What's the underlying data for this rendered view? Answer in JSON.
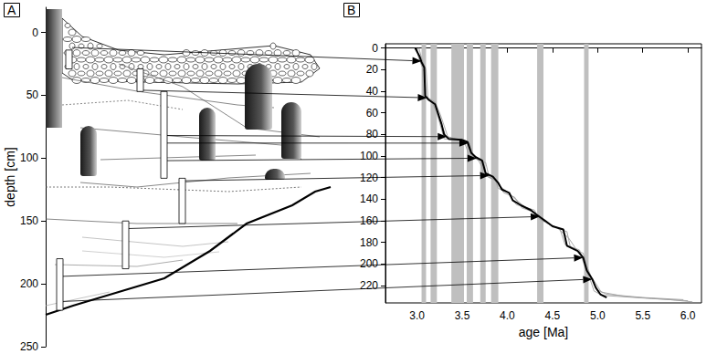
{
  "chart_data": [
    {
      "type": "section",
      "title": "A",
      "ylabel": "depth [cm]",
      "ylim": [
        -20,
        250
      ],
      "yticks": [
        0,
        50,
        100,
        150,
        200,
        250
      ],
      "samples": [
        [
          14,
          29
        ],
        [
          29,
          47
        ],
        [
          47,
          116
        ],
        [
          116,
          152
        ],
        [
          150,
          188
        ],
        [
          180,
          221
        ]
      ]
    },
    {
      "type": "line",
      "title": "B",
      "xlabel": "age [Ma]",
      "xlim": [
        2.65,
        6.15
      ],
      "xticks": [
        {
          "value": 3,
          "label": "3.0"
        },
        3.5,
        {
          "value": 4,
          "label": "4.0"
        },
        4.5,
        {
          "value": 5,
          "label": "5.0"
        },
        5.5,
        {
          "value": 6,
          "label": "6.0"
        }
      ],
      "ylim": [
        -4,
        236
      ],
      "yticks": [
        0,
        20,
        40,
        60,
        80,
        100,
        120,
        140,
        160,
        180,
        200,
        220
      ],
      "intervals": {
        "color": "#bfbfbf",
        "values": [
          [
            3.05,
            3.1
          ],
          [
            3.15,
            3.22
          ],
          [
            3.38,
            3.52
          ],
          [
            3.55,
            3.62
          ],
          [
            3.7,
            3.76
          ],
          [
            3.82,
            3.9
          ],
          [
            4.33,
            4.4
          ],
          [
            4.85,
            4.9
          ]
        ]
      },
      "series": [
        {
          "color": "#a0a0a0",
          "line_style": "solid",
          "values": [
            [
              3.0,
              0
            ],
            [
              3.02,
              10
            ],
            [
              3.06,
              16
            ],
            [
              3.07,
              44
            ],
            [
              3.16,
              49
            ],
            [
              3.22,
              60
            ],
            [
              3.3,
              84
            ],
            [
              3.52,
              86
            ],
            [
              3.58,
              100
            ],
            [
              3.7,
              103
            ],
            [
              3.74,
              118
            ],
            [
              3.86,
              121
            ],
            [
              3.9,
              130
            ],
            [
              4.0,
              133
            ],
            [
              4.1,
              145
            ],
            [
              4.3,
              150
            ],
            [
              4.35,
              158
            ],
            [
              4.48,
              164
            ],
            [
              4.58,
              167
            ],
            [
              4.64,
              182
            ],
            [
              4.8,
              187
            ],
            [
              4.86,
              203
            ],
            [
              4.92,
              215
            ],
            [
              4.96,
              225
            ],
            [
              5.05,
              229
            ],
            [
              5.6,
              232
            ],
            [
              6.0,
              234
            ]
          ]
        },
        {
          "color": "#a0a0a0",
          "line_style": "solid",
          "values": [
            [
              3.02,
              0
            ],
            [
              3.06,
              12
            ],
            [
              3.1,
              20
            ],
            [
              3.12,
              46
            ],
            [
              3.2,
              50
            ],
            [
              3.26,
              62
            ],
            [
              3.34,
              82
            ],
            [
              3.58,
              88
            ],
            [
              3.63,
              102
            ],
            [
              3.76,
              106
            ],
            [
              3.8,
              120
            ],
            [
              3.9,
              124
            ],
            [
              3.96,
              134
            ],
            [
              4.08,
              138
            ],
            [
              4.16,
              148
            ],
            [
              4.3,
              152
            ],
            [
              4.4,
              160
            ],
            [
              4.54,
              166
            ],
            [
              4.66,
              170
            ],
            [
              4.7,
              185
            ],
            [
              4.84,
              190
            ],
            [
              4.9,
              208
            ],
            [
              4.98,
              218
            ],
            [
              5.04,
              226
            ],
            [
              5.3,
              230
            ],
            [
              5.8,
              233
            ],
            [
              6.05,
              235
            ]
          ]
        },
        {
          "color": "#a0a0a0",
          "line_style": "solid",
          "values": [
            [
              3.0,
              2
            ],
            [
              3.04,
              14
            ],
            [
              3.08,
              22
            ],
            [
              3.1,
              45
            ],
            [
              3.18,
              50
            ],
            [
              3.24,
              64
            ],
            [
              3.32,
              82
            ],
            [
              3.54,
              86
            ],
            [
              3.6,
              99
            ],
            [
              3.68,
              104
            ],
            [
              3.78,
              119
            ],
            [
              3.88,
              122
            ],
            [
              3.92,
              128
            ],
            [
              4.04,
              136
            ],
            [
              4.12,
              142
            ],
            [
              4.22,
              149
            ],
            [
              4.36,
              156
            ],
            [
              4.44,
              162
            ],
            [
              4.56,
              167
            ],
            [
              4.68,
              176
            ],
            [
              4.76,
              186
            ],
            [
              4.86,
              198
            ],
            [
              4.94,
              214
            ],
            [
              5.0,
              224
            ],
            [
              5.1,
              228
            ],
            [
              5.5,
              231
            ],
            [
              5.95,
              233
            ]
          ]
        },
        {
          "color": "#000000",
          "line_style": "solid",
          "values": [
            [
              2.98,
              0
            ],
            [
              3.03,
              8
            ],
            [
              3.05,
              13
            ],
            [
              3.08,
              18
            ],
            [
              3.09,
              44
            ],
            [
              3.13,
              48
            ],
            [
              3.2,
              52
            ],
            [
              3.27,
              70
            ],
            [
              3.3,
              80
            ],
            [
              3.35,
              84
            ],
            [
              3.5,
              85
            ],
            [
              3.56,
              87
            ],
            [
              3.6,
              97
            ],
            [
              3.65,
              101
            ],
            [
              3.72,
              104
            ],
            [
              3.76,
              116
            ],
            [
              3.84,
              119
            ],
            [
              3.9,
              125
            ],
            [
              3.94,
              131
            ],
            [
              4.02,
              134
            ],
            [
              4.06,
              141
            ],
            [
              4.16,
              146
            ],
            [
              4.26,
              150
            ],
            [
              4.32,
              154
            ],
            [
              4.42,
              160
            ],
            [
              4.5,
              165
            ],
            [
              4.62,
              168
            ],
            [
              4.66,
              183
            ],
            [
              4.78,
              188
            ],
            [
              4.84,
              194
            ],
            [
              4.88,
              206
            ],
            [
              4.94,
              214
            ],
            [
              4.98,
              222
            ],
            [
              5.03,
              228
            ],
            [
              5.1,
              231
            ]
          ]
        }
      ],
      "arrows": [
        {
          "depth": 12,
          "age": 3.05
        },
        {
          "depth": 46,
          "age": 3.11
        },
        {
          "depth": 82,
          "age": 3.33
        },
        {
          "depth": 88,
          "age": 3.57
        },
        {
          "depth": 102,
          "age": 3.66
        },
        {
          "depth": 118,
          "age": 3.8
        },
        {
          "depth": 156,
          "age": 4.36
        },
        {
          "depth": 194,
          "age": 4.84
        },
        {
          "depth": 214,
          "age": 4.94
        }
      ]
    }
  ]
}
